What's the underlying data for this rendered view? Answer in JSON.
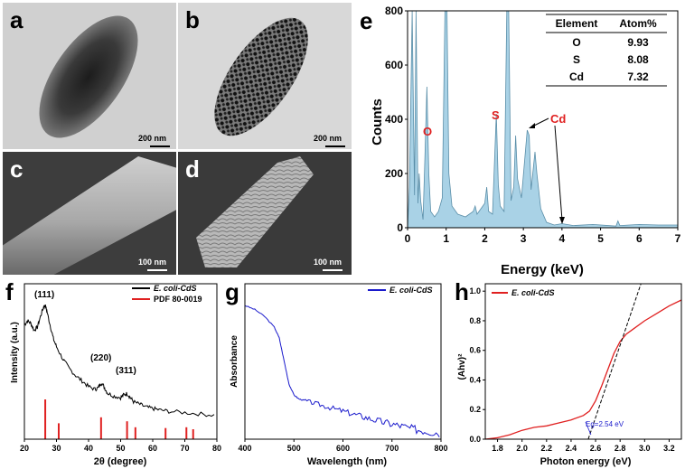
{
  "panels": {
    "a": {
      "label": "a",
      "scale": "200 nm"
    },
    "b": {
      "label": "b",
      "scale": "200 nm"
    },
    "c": {
      "label": "c",
      "scale": "100 nm"
    },
    "d": {
      "label": "d",
      "scale": "100 nm"
    },
    "e": {
      "label": "e"
    },
    "f": {
      "label": "f"
    },
    "g": {
      "label": "g"
    },
    "h": {
      "label": "h"
    }
  },
  "colors": {
    "eds_fill": "#a9d2e6",
    "red": "#e02020",
    "blue": "#1a1acc",
    "black": "#000000"
  },
  "chart_data": [
    {
      "id": "e",
      "type": "area",
      "xlabel": "Energy (keV)",
      "ylabel": "Counts",
      "xlim": [
        0,
        7
      ],
      "ylim": [
        0,
        800
      ],
      "xticks": [
        "0",
        "1",
        "2",
        "3",
        "4",
        "5",
        "6",
        "7"
      ],
      "yticks": [
        "0",
        "200",
        "400",
        "600",
        "800"
      ],
      "x": [
        0,
        0.05,
        0.12,
        0.18,
        0.22,
        0.27,
        0.3,
        0.34,
        0.4,
        0.45,
        0.5,
        0.55,
        0.6,
        0.7,
        0.8,
        0.9,
        0.97,
        1.02,
        1.07,
        1.15,
        1.3,
        1.5,
        1.7,
        1.75,
        1.8,
        2.0,
        2.05,
        2.1,
        2.2,
        2.3,
        2.35,
        2.4,
        2.5,
        2.57,
        2.62,
        2.68,
        2.75,
        2.8,
        2.85,
        2.95,
        3.1,
        3.15,
        3.2,
        3.3,
        3.35,
        3.45,
        3.6,
        3.8,
        4.0,
        4.3,
        4.8,
        5.4,
        5.45,
        5.5,
        6.0,
        6.5,
        7.0
      ],
      "y": [
        0,
        150,
        800,
        120,
        800,
        90,
        200,
        100,
        30,
        260,
        520,
        200,
        60,
        40,
        60,
        110,
        800,
        800,
        200,
        80,
        50,
        40,
        60,
        80,
        50,
        90,
        150,
        60,
        50,
        420,
        160,
        80,
        60,
        800,
        800,
        100,
        150,
        340,
        180,
        110,
        360,
        340,
        140,
        280,
        200,
        70,
        20,
        10,
        15,
        8,
        12,
        6,
        25,
        8,
        12,
        10,
        10
      ],
      "annotations": [
        "O",
        "S",
        "Cd"
      ],
      "table": {
        "headers": [
          "Element",
          "Atom%"
        ],
        "rows": [
          [
            "O",
            "9.93"
          ],
          [
            "S",
            "8.08"
          ],
          [
            "Cd",
            "7.32"
          ]
        ]
      }
    },
    {
      "id": "f",
      "type": "line",
      "xlabel": "2θ (degree)",
      "ylabel": "Intensity (a.u.)",
      "xlim": [
        20,
        80
      ],
      "xticks": [
        "20",
        "30",
        "40",
        "50",
        "60",
        "70",
        "80"
      ],
      "series": [
        {
          "name": "E. coli-CdS",
          "color": "#000000",
          "x": [
            20,
            21,
            22,
            23,
            24,
            25,
            26,
            26.5,
            27,
            28,
            29,
            30,
            32,
            34,
            36,
            38,
            40,
            42,
            43,
            44,
            45,
            46,
            48,
            50,
            51,
            52,
            53,
            54,
            56,
            58,
            60,
            62,
            65,
            70,
            75,
            80
          ],
          "y": [
            0.82,
            0.85,
            0.83,
            0.78,
            0.8,
            0.88,
            0.95,
            0.96,
            0.92,
            0.82,
            0.72,
            0.66,
            0.57,
            0.5,
            0.45,
            0.41,
            0.37,
            0.35,
            0.36,
            0.4,
            0.36,
            0.32,
            0.3,
            0.29,
            0.31,
            0.32,
            0.29,
            0.26,
            0.24,
            0.22,
            0.21,
            0.2,
            0.19,
            0.18,
            0.17,
            0.16
          ]
        }
      ],
      "reference": {
        "name": "PDF 80-0019",
        "color": "#e02020",
        "x": [
          26.5,
          30.7,
          43.9,
          52.0,
          54.6,
          64.0,
          70.5,
          72.6
        ],
        "h": [
          1.0,
          0.4,
          0.55,
          0.45,
          0.3,
          0.28,
          0.3,
          0.25
        ]
      },
      "annotations": [
        "(111)",
        "(220)",
        "(311)"
      ]
    },
    {
      "id": "g",
      "type": "line",
      "xlabel": "Wavelength (nm)",
      "ylabel": "Absorbance",
      "xlim": [
        400,
        800
      ],
      "xticks": [
        "400",
        "500",
        "600",
        "700",
        "800"
      ],
      "series": [
        {
          "name": "E. coli-CdS",
          "color": "#1a1acc",
          "x": [
            400,
            420,
            440,
            460,
            470,
            480,
            490,
            500,
            510,
            520,
            540,
            560,
            580,
            600,
            620,
            640,
            660,
            680,
            700,
            720,
            740,
            760,
            780,
            800
          ],
          "y": [
            0.96,
            0.93,
            0.88,
            0.8,
            0.72,
            0.55,
            0.38,
            0.3,
            0.27,
            0.26,
            0.24,
            0.22,
            0.2,
            0.18,
            0.16,
            0.14,
            0.12,
            0.1,
            0.085,
            0.07,
            0.05,
            0.04,
            0.03,
            0.02
          ]
        }
      ]
    },
    {
      "id": "h",
      "type": "line",
      "xlabel": "Photon energy (eV)",
      "ylabel": "(Ahv)²",
      "xlim": [
        1.7,
        3.3
      ],
      "ylim": [
        0,
        1.05
      ],
      "xticks": [
        "1.8",
        "2.0",
        "2.2",
        "2.4",
        "2.6",
        "2.8",
        "3.0",
        "3.2"
      ],
      "yticks": [
        "0.0",
        "0.2",
        "0.4",
        "0.6",
        "0.8",
        "1.0"
      ],
      "series": [
        {
          "name": "E. coli-CdS",
          "color": "#e02020",
          "x": [
            1.7,
            1.8,
            1.9,
            2.0,
            2.1,
            2.2,
            2.3,
            2.4,
            2.5,
            2.55,
            2.6,
            2.65,
            2.7,
            2.75,
            2.8,
            2.85,
            2.9,
            3.0,
            3.1,
            3.2,
            3.3
          ],
          "y": [
            0.0,
            0.01,
            0.03,
            0.06,
            0.08,
            0.09,
            0.11,
            0.13,
            0.16,
            0.19,
            0.26,
            0.36,
            0.47,
            0.58,
            0.66,
            0.71,
            0.74,
            0.8,
            0.85,
            0.9,
            0.94
          ]
        }
      ],
      "tangent": {
        "x": [
          2.54,
          2.97
        ],
        "y": [
          0.0,
          1.05
        ]
      },
      "annotation": "Eg=2.54 eV"
    }
  ],
  "legend": {
    "f_series": "E. coli-CdS",
    "f_ref": "PDF 80-0019",
    "g_series": "E. coli-CdS",
    "h_series": "E. coli-CdS"
  }
}
